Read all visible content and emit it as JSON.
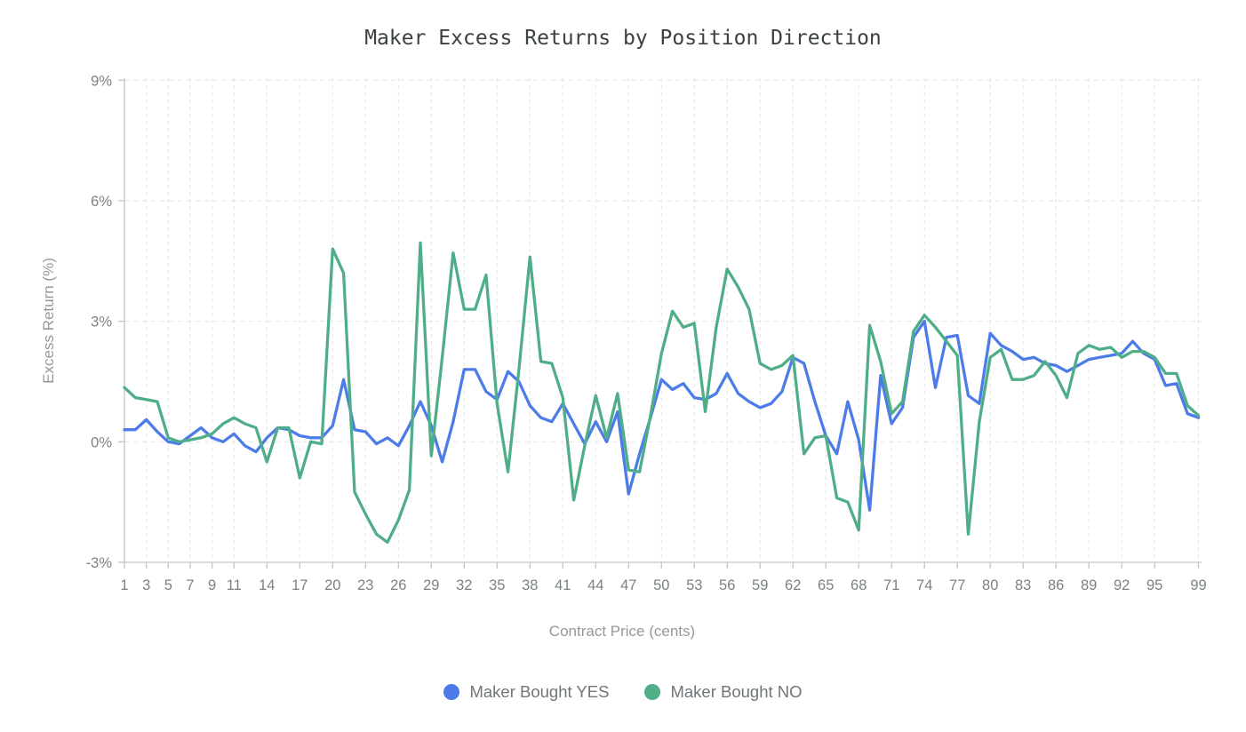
{
  "chart_data": {
    "type": "line",
    "title": "Maker Excess Returns by Position Direction",
    "xlabel": "Contract Price (cents)",
    "ylabel": "Excess Return (%)",
    "xlim": [
      1,
      99
    ],
    "ylim": [
      -3,
      9.05
    ],
    "grid": "dashed",
    "legend_position": "bottom",
    "yticks": [
      -3,
      0,
      3,
      6,
      9
    ],
    "ytick_labels": [
      "-3%",
      "0%",
      "3%",
      "6%",
      "9%"
    ],
    "xticks": [
      1,
      3,
      5,
      7,
      9,
      11,
      14,
      17,
      20,
      23,
      26,
      29,
      32,
      35,
      38,
      41,
      44,
      47,
      50,
      53,
      56,
      59,
      62,
      65,
      68,
      71,
      74,
      77,
      80,
      83,
      86,
      89,
      92,
      95,
      99
    ],
    "x": [
      1,
      2,
      3,
      4,
      5,
      6,
      7,
      8,
      9,
      10,
      11,
      12,
      13,
      14,
      15,
      16,
      17,
      18,
      19,
      20,
      21,
      22,
      23,
      24,
      25,
      26,
      27,
      28,
      29,
      30,
      31,
      32,
      33,
      34,
      35,
      36,
      37,
      38,
      39,
      40,
      41,
      42,
      43,
      44,
      45,
      46,
      47,
      48,
      49,
      50,
      51,
      52,
      53,
      54,
      55,
      56,
      57,
      58,
      59,
      60,
      61,
      62,
      63,
      64,
      65,
      66,
      67,
      68,
      69,
      70,
      71,
      72,
      73,
      74,
      75,
      76,
      77,
      78,
      79,
      80,
      81,
      82,
      83,
      84,
      85,
      86,
      87,
      88,
      89,
      90,
      91,
      92,
      93,
      94,
      95,
      96,
      97,
      98,
      99
    ],
    "series": [
      {
        "name": "Maker Bought YES",
        "color": "#4d7ce8",
        "values": [
          0.3,
          0.3,
          0.55,
          0.25,
          0.0,
          -0.05,
          0.15,
          0.35,
          0.1,
          0.0,
          0.2,
          -0.1,
          -0.25,
          0.1,
          0.35,
          0.3,
          0.15,
          0.1,
          0.1,
          0.4,
          1.55,
          0.3,
          0.25,
          -0.05,
          0.1,
          -0.1,
          0.4,
          1.0,
          0.4,
          -0.5,
          0.5,
          1.8,
          1.8,
          1.25,
          1.05,
          1.75,
          1.5,
          0.9,
          0.6,
          0.5,
          0.95,
          0.45,
          -0.05,
          0.5,
          0.0,
          0.75,
          -1.3,
          -0.3,
          0.6,
          1.55,
          1.3,
          1.45,
          1.1,
          1.05,
          1.2,
          1.7,
          1.2,
          1.0,
          0.85,
          0.95,
          1.25,
          2.1,
          1.95,
          1.0,
          0.15,
          -0.3,
          1.0,
          0.05,
          -1.7,
          1.65,
          0.45,
          0.85,
          2.6,
          3.0,
          1.35,
          2.6,
          2.65,
          1.15,
          0.95,
          2.7,
          2.4,
          2.25,
          2.05,
          2.1,
          1.95,
          1.9,
          1.75,
          1.9,
          2.05,
          2.1,
          2.15,
          2.2,
          2.5,
          2.2,
          2.05,
          1.4,
          1.45,
          0.7,
          0.6
        ]
      },
      {
        "name": "Maker Bought NO",
        "color": "#4fae87",
        "values": [
          1.35,
          1.1,
          1.05,
          1.0,
          0.1,
          0.0,
          0.05,
          0.1,
          0.2,
          0.45,
          0.6,
          0.45,
          0.35,
          -0.5,
          0.35,
          0.35,
          -0.9,
          0.0,
          -0.05,
          4.8,
          4.2,
          -1.25,
          -1.8,
          -2.3,
          -2.5,
          -1.95,
          -1.2,
          4.95,
          -0.35,
          2.1,
          4.7,
          3.3,
          3.3,
          4.15,
          0.95,
          -0.75,
          1.8,
          4.6,
          2.0,
          1.95,
          1.1,
          -1.45,
          -0.1,
          1.15,
          0.1,
          1.2,
          -0.7,
          -0.75,
          0.65,
          2.2,
          3.25,
          2.85,
          2.95,
          0.75,
          2.85,
          4.3,
          3.85,
          3.3,
          1.95,
          1.8,
          1.9,
          2.15,
          -0.3,
          0.1,
          0.15,
          -1.4,
          -1.5,
          -2.2,
          2.9,
          2.0,
          0.7,
          1.0,
          2.75,
          3.15,
          2.85,
          2.5,
          2.15,
          -2.3,
          0.5,
          2.1,
          2.3,
          1.55,
          1.55,
          1.65,
          2.0,
          1.65,
          1.1,
          2.2,
          2.4,
          2.3,
          2.35,
          2.1,
          2.25,
          2.25,
          2.1,
          1.7,
          1.7,
          0.9,
          0.65
        ]
      }
    ]
  }
}
